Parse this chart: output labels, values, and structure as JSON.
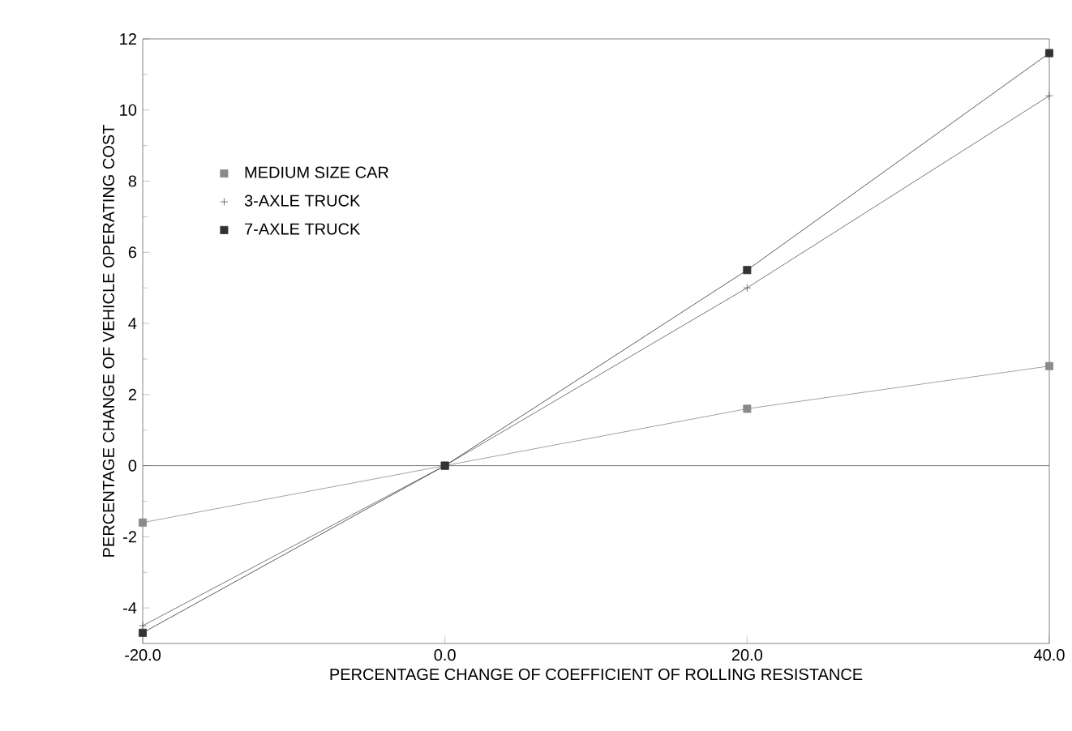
{
  "chart_data": {
    "type": "line",
    "xlabel": "PERCENTAGE CHANGE OF COEFFICIENT OF ROLLING RESISTANCE",
    "ylabel": "PERCENTAGE CHANGE OF VEHICLE OPERATING COST",
    "x": [
      -20,
      0,
      20,
      40
    ],
    "series": [
      {
        "name": "MEDIUM SIZE CAR",
        "color": "#8a8a8a",
        "marker": "square",
        "values": [
          -1.6,
          0,
          1.6,
          2.8
        ]
      },
      {
        "name": "3-AXLE TRUCK",
        "color": "#555555",
        "marker": "cross",
        "values": [
          -4.5,
          0,
          5.0,
          10.4
        ]
      },
      {
        "name": "7-AXLE TRUCK",
        "color": "#333333",
        "marker": "square",
        "values": [
          -4.7,
          0,
          5.5,
          11.6
        ]
      }
    ],
    "xlim": [
      -20,
      40
    ],
    "xticks": [
      {
        "value": -20,
        "label": "-20.0"
      },
      {
        "value": 0,
        "label": "0.0"
      },
      {
        "value": 20,
        "label": "20.0"
      },
      {
        "value": 40,
        "label": "40.0"
      }
    ],
    "ylim": [
      -5,
      12
    ],
    "yticks": [
      -4,
      -2,
      0,
      2,
      4,
      6,
      8,
      10,
      12
    ],
    "ref_lines": [
      {
        "axis": "y",
        "value": 0,
        "color": "#555555"
      }
    ],
    "legend": "top left",
    "grid": false,
    "line_style": "solid"
  }
}
